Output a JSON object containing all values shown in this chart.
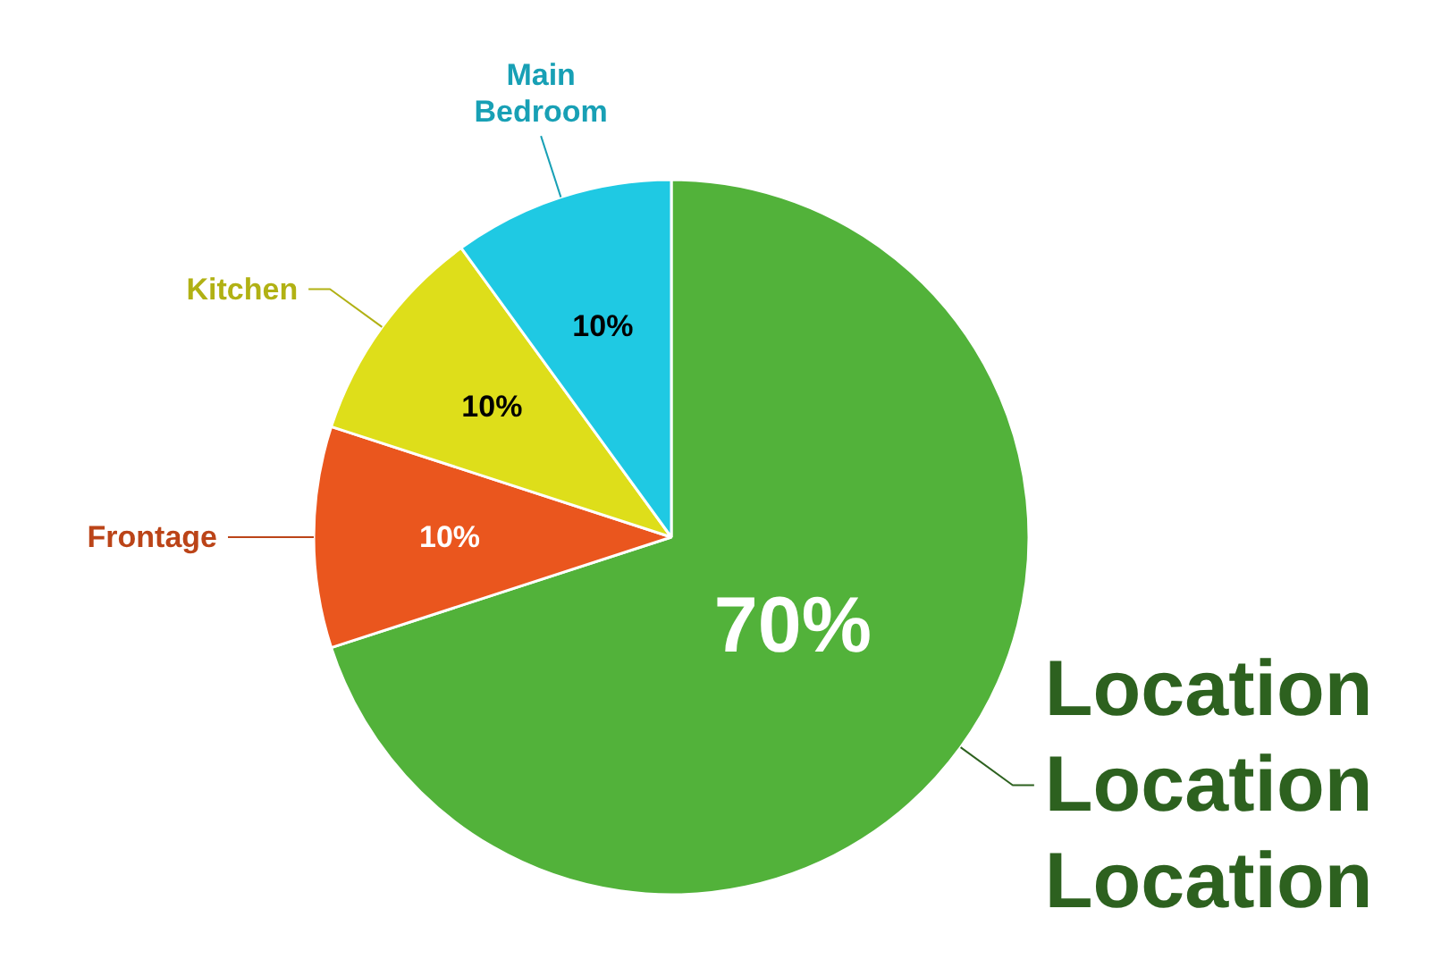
{
  "chart_data": {
    "type": "pie",
    "categories": [
      "Location Location Location",
      "Frontage",
      "Kitchen",
      "Main Bedroom"
    ],
    "values": [
      70,
      10,
      10,
      10
    ],
    "value_labels": [
      "70%",
      "10%",
      "10%",
      "10%"
    ],
    "colors": [
      "#52b23a",
      "#ea561e",
      "#dede1a",
      "#1fc9e3"
    ]
  }
}
